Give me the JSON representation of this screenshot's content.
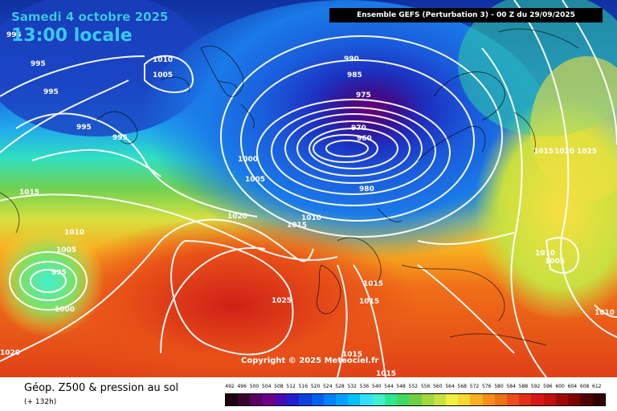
{
  "header": {
    "date": "Samedi 4 octobre 2025",
    "time": "13:00 locale",
    "model_info": "Ensemble GEFS  (Perturbation 3)  -  00 Z du 29/09/2025"
  },
  "map": {
    "copyright": "Copyright © 2025 Meteociel.fr",
    "isobars": [
      {
        "text": "995"
      },
      {
        "text": "1010"
      },
      {
        "text": "1005"
      },
      {
        "text": "995"
      },
      {
        "text": "995"
      },
      {
        "text": "995"
      },
      {
        "text": "995"
      },
      {
        "text": "990"
      },
      {
        "text": "985"
      },
      {
        "text": "975"
      },
      {
        "text": "970"
      },
      {
        "text": "960"
      },
      {
        "text": "980"
      },
      {
        "text": "1000"
      },
      {
        "text": "1005"
      },
      {
        "text": "1015"
      },
      {
        "text": "1020"
      },
      {
        "text": "1010"
      },
      {
        "text": "1015"
      },
      {
        "text": "1010"
      },
      {
        "text": "1005"
      },
      {
        "text": "995"
      },
      {
        "text": "1000"
      },
      {
        "text": "1025"
      },
      {
        "text": "1015"
      },
      {
        "text": "1015"
      },
      {
        "text": "1015"
      },
      {
        "text": "1020"
      },
      {
        "text": "1025"
      },
      {
        "text": "1010"
      },
      {
        "text": "1005"
      },
      {
        "text": "1010"
      },
      {
        "text": "1020"
      },
      {
        "text": "1015"
      },
      {
        "text": "1015"
      }
    ]
  },
  "footer": {
    "title": "Géop. Z500 & pression au sol",
    "forecast_hour": "(+ 132h)"
  },
  "legend": {
    "values": [
      "492",
      "496",
      "500",
      "504",
      "508",
      "512",
      "516",
      "520",
      "524",
      "528",
      "532",
      "536",
      "540",
      "544",
      "548",
      "552",
      "556",
      "560",
      "564",
      "568",
      "572",
      "576",
      "580",
      "584",
      "588",
      "592",
      "596",
      "600",
      "604",
      "608",
      "612"
    ],
    "colors": [
      "#1a0010",
      "#3a0030",
      "#5a0060",
      "#70008a",
      "#4a0ab0",
      "#2020d0",
      "#1040e0",
      "#0060f0",
      "#0080ff",
      "#00a0ff",
      "#00c0ff",
      "#30e0ff",
      "#40f0d0",
      "#30e890",
      "#40d860",
      "#70d040",
      "#a0d840",
      "#c8e040",
      "#f0f040",
      "#f8d830",
      "#f8b020",
      "#f89018",
      "#f07018",
      "#e85018",
      "#e03018",
      "#d81818",
      "#c01010",
      "#a00808",
      "#800000",
      "#500000",
      "#300000"
    ]
  }
}
